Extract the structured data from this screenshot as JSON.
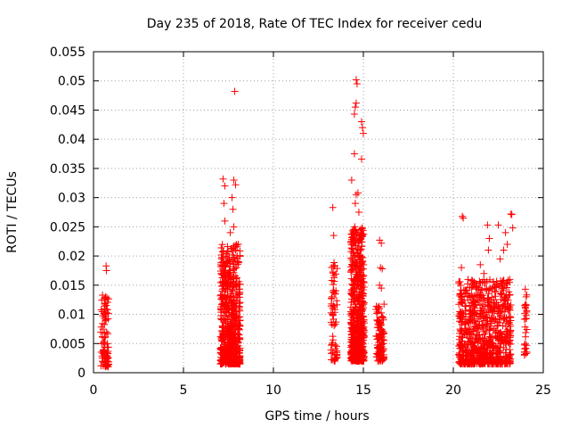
{
  "chart_data": {
    "type": "scatter",
    "title": "Day 235 of 2018, Rate Of TEC Index for receiver cedu",
    "xlabel": "GPS time / hours",
    "ylabel": "ROTI / TECUs",
    "xlim": [
      0,
      25
    ],
    "ylim": [
      0,
      0.055
    ],
    "xticks": [
      0,
      5,
      10,
      15,
      20,
      25
    ],
    "xtick_labels": [
      "0",
      "5",
      "10",
      "15",
      "20",
      "25"
    ],
    "yticks": [
      0,
      0.005,
      0.01,
      0.015,
      0.02,
      0.025,
      0.03,
      0.035,
      0.04,
      0.045,
      0.05,
      0.055
    ],
    "ytick_labels": [
      "0",
      "0.005",
      "0.01",
      "0.015",
      "0.02",
      "0.025",
      "0.03",
      "0.035",
      "0.04",
      "0.045",
      "0.05",
      "0.055"
    ],
    "grid": true,
    "marker": "plus",
    "series_color": "#ff0000",
    "clusters": [
      {
        "x": [
          0.4,
          0.85
        ],
        "y": [
          0.001,
          0.013
        ],
        "count": 90,
        "peaks": [
          [
            0.5,
            0.0133
          ],
          [
            0.7,
            0.0183
          ],
          [
            0.72,
            0.0175
          ],
          [
            0.6,
            0.0125
          ]
        ]
      },
      {
        "x": [
          7.05,
          8.15
        ],
        "y": [
          0.0015,
          0.022
        ],
        "count": 650,
        "peaks": [
          [
            7.85,
            0.0482
          ],
          [
            7.2,
            0.0332
          ],
          [
            7.3,
            0.032
          ],
          [
            7.8,
            0.033
          ],
          [
            7.9,
            0.0322
          ],
          [
            7.25,
            0.029
          ],
          [
            7.7,
            0.03
          ],
          [
            7.75,
            0.028
          ],
          [
            7.3,
            0.026
          ],
          [
            7.8,
            0.025
          ],
          [
            7.6,
            0.024
          ],
          [
            8.05,
            0.022
          ],
          [
            7.9,
            0.021
          ]
        ]
      },
      {
        "x": [
          13.2,
          13.55
        ],
        "y": [
          0.002,
          0.02
        ],
        "count": 70,
        "peaks": [
          [
            13.3,
            0.0283
          ],
          [
            13.35,
            0.0235
          ]
        ]
      },
      {
        "x": [
          14.3,
          15.05
        ],
        "y": [
          0.002,
          0.025
        ],
        "count": 650,
        "peaks": [
          [
            14.6,
            0.0502
          ],
          [
            14.65,
            0.0495
          ],
          [
            14.6,
            0.0462
          ],
          [
            14.55,
            0.0455
          ],
          [
            14.5,
            0.0443
          ],
          [
            14.9,
            0.043
          ],
          [
            14.95,
            0.042
          ],
          [
            15.0,
            0.041
          ],
          [
            14.5,
            0.0375
          ],
          [
            14.9,
            0.0366
          ],
          [
            14.35,
            0.033
          ],
          [
            14.6,
            0.0305
          ],
          [
            14.7,
            0.0308
          ],
          [
            14.55,
            0.029
          ],
          [
            14.75,
            0.0275
          ]
        ]
      },
      {
        "x": [
          15.7,
          16.15
        ],
        "y": [
          0.002,
          0.012
        ],
        "count": 110,
        "peaks": [
          [
            15.9,
            0.0227
          ],
          [
            16.0,
            0.0222
          ],
          [
            15.95,
            0.018
          ],
          [
            16.05,
            0.0178
          ],
          [
            15.9,
            0.015
          ],
          [
            16.0,
            0.0145
          ]
        ]
      },
      {
        "x": [
          20.3,
          23.2
        ],
        "y": [
          0.0015,
          0.016
        ],
        "count": 800,
        "peaks": [
          [
            20.5,
            0.0268
          ],
          [
            20.55,
            0.0265
          ],
          [
            21.9,
            0.0253
          ],
          [
            22.0,
            0.023
          ],
          [
            22.5,
            0.0253
          ],
          [
            22.9,
            0.024
          ],
          [
            23.2,
            0.0272
          ],
          [
            23.25,
            0.0271
          ],
          [
            23.3,
            0.0248
          ],
          [
            22.8,
            0.021
          ],
          [
            23.0,
            0.022
          ],
          [
            21.95,
            0.021
          ],
          [
            22.6,
            0.0195
          ],
          [
            21.5,
            0.0185
          ],
          [
            20.45,
            0.018
          ],
          [
            21.7,
            0.017
          ]
        ]
      },
      {
        "x": [
          23.95,
          24.1
        ],
        "y": [
          0.003,
          0.014
        ],
        "count": 30,
        "peaks": [
          [
            24.0,
            0.0143
          ],
          [
            24.05,
            0.013
          ]
        ]
      }
    ]
  }
}
